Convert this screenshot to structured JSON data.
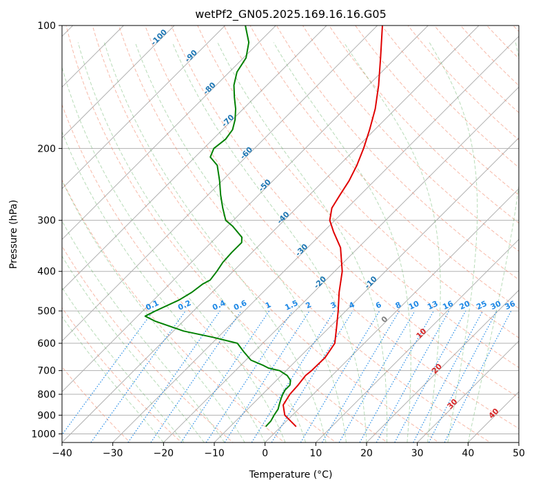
{
  "chart_data": {
    "type": "skew-t",
    "title": "wetPf2_GN05.2025.169.16.16.G05",
    "xlabel": "Temperature (°C)",
    "ylabel": "Pressure (hPa)",
    "xlim": [
      -40,
      50
    ],
    "ylim": [
      1050,
      100
    ],
    "y_scale": "log",
    "skew": "isotherms slope 45° to the right",
    "grid": true,
    "x_ticks": [
      "−40",
      "−30",
      "−20",
      "−10",
      "0",
      "10",
      "20",
      "30",
      "40",
      "50"
    ],
    "x_tick_values": [
      -40,
      -30,
      -20,
      -10,
      0,
      10,
      20,
      30,
      40,
      50
    ],
    "y_ticks": [
      "100",
      "200",
      "300",
      "400",
      "500",
      "600",
      "700",
      "800",
      "900",
      "1000"
    ],
    "y_tick_values": [
      100,
      200,
      300,
      400,
      500,
      600,
      700,
      800,
      900,
      1000
    ],
    "series": [
      {
        "color": "#e00000",
        "points": [
          [
            960,
            3.0
          ],
          [
            900,
            -1.5
          ],
          [
            850,
            -3.8
          ],
          [
            800,
            -4.6
          ],
          [
            760,
            -4.8
          ],
          [
            720,
            -5.2
          ],
          [
            700,
            -5.0
          ],
          [
            650,
            -4.9
          ],
          [
            600,
            -5.8
          ],
          [
            550,
            -8.5
          ],
          [
            500,
            -11.5
          ],
          [
            450,
            -15.0
          ],
          [
            400,
            -18.5
          ],
          [
            350,
            -23.5
          ],
          [
            320,
            -28.0
          ],
          [
            300,
            -31.0
          ],
          [
            280,
            -33.0
          ],
          [
            260,
            -34.0
          ],
          [
            240,
            -35.0
          ],
          [
            220,
            -36.5
          ],
          [
            200,
            -38.5
          ],
          [
            180,
            -41.0
          ],
          [
            160,
            -44.0
          ],
          [
            140,
            -48.0
          ],
          [
            120,
            -53.0
          ],
          [
            100,
            -59.0
          ]
        ]
      },
      {
        "color": "#008000",
        "points": [
          [
            960,
            -3.0
          ],
          [
            930,
            -3.1
          ],
          [
            900,
            -3.6
          ],
          [
            870,
            -4.0
          ],
          [
            850,
            -4.6
          ],
          [
            820,
            -5.5
          ],
          [
            800,
            -6.0
          ],
          [
            780,
            -6.4
          ],
          [
            760,
            -6.4
          ],
          [
            740,
            -7.2
          ],
          [
            720,
            -8.8
          ],
          [
            700,
            -11.3
          ],
          [
            690,
            -14.0
          ],
          [
            680,
            -15.5
          ],
          [
            660,
            -19.0
          ],
          [
            630,
            -22.0
          ],
          [
            600,
            -25.0
          ],
          [
            580,
            -31.0
          ],
          [
            560,
            -38.0
          ],
          [
            530,
            -45.5
          ],
          [
            515,
            -48.5
          ],
          [
            500,
            -47.5
          ],
          [
            470,
            -45.0
          ],
          [
            450,
            -44.0
          ],
          [
            430,
            -43.5
          ],
          [
            420,
            -42.8
          ],
          [
            400,
            -43.2
          ],
          [
            380,
            -43.8
          ],
          [
            360,
            -44.0
          ],
          [
            340,
            -44.0
          ],
          [
            330,
            -45.0
          ],
          [
            310,
            -49.0
          ],
          [
            300,
            -51.5
          ],
          [
            280,
            -54.5
          ],
          [
            260,
            -57.5
          ],
          [
            240,
            -60.5
          ],
          [
            220,
            -64.0
          ],
          [
            210,
            -67.0
          ],
          [
            200,
            -68.0
          ],
          [
            190,
            -67.5
          ],
          [
            180,
            -68.0
          ],
          [
            170,
            -69.5
          ],
          [
            160,
            -71.5
          ],
          [
            150,
            -74.0
          ],
          [
            140,
            -76.5
          ],
          [
            130,
            -78.5
          ],
          [
            120,
            -79.5
          ],
          [
            110,
            -82.0
          ],
          [
            100,
            -86.0
          ]
        ]
      }
    ],
    "isotherm_labels": [
      "-100",
      "-90",
      "-80",
      "-70",
      "-60",
      "-50",
      "-40",
      "-30",
      "-20",
      "-10",
      "0",
      "10",
      "20",
      "30",
      "40"
    ],
    "isotherm_label_values": [
      -100,
      -90,
      -80,
      -70,
      -60,
      -50,
      -40,
      -30,
      -20,
      -10,
      0,
      10,
      20,
      30,
      40
    ],
    "isotherm_label_colors": [
      "#1f77b4",
      "#1f77b4",
      "#1f77b4",
      "#1f77b4",
      "#1f77b4",
      "#1f77b4",
      "#1f77b4",
      "#1f77b4",
      "#1f77b4",
      "#1f77b4",
      "#7f7f7f",
      "#d62728",
      "#d62728",
      "#d62728",
      "#d62728"
    ],
    "mixing_ratio_labels": [
      "0.1",
      "0.2",
      "0.4",
      "0.6",
      "1",
      "1.5",
      "2",
      "3",
      "4",
      "6",
      "8",
      "10",
      "13",
      "16",
      "20",
      "25",
      "30",
      "36"
    ],
    "mixing_ratio_values": [
      0.1,
      0.2,
      0.4,
      0.6,
      1,
      1.5,
      2,
      3,
      4,
      6,
      8,
      10,
      13,
      16,
      20,
      25,
      30,
      36
    ]
  },
  "colors": {
    "temperature": "#e00000",
    "dewpoint": "#008000",
    "grid": "#b0b0b0",
    "dry_adiabat": "#f08060",
    "moist_adiabat": "#60b060",
    "mixing_ratio": "#1e88e5",
    "isotherm_label": "#1f77b4"
  }
}
